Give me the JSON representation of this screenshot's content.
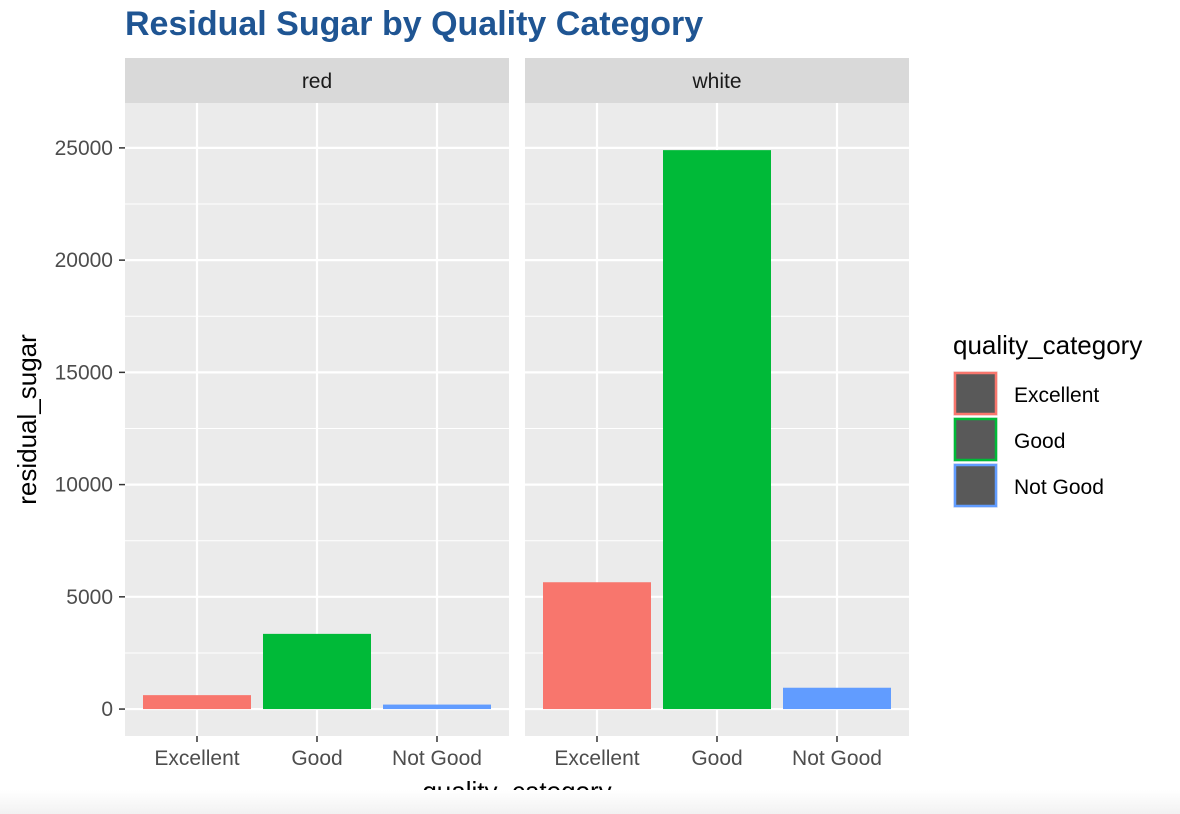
{
  "chart_data": {
    "type": "bar",
    "title": "Residual Sugar by Quality Category",
    "xlabel": "quality_category",
    "ylabel": "residual_sugar",
    "categories": [
      "Excellent",
      "Good",
      "Not Good"
    ],
    "ylim": [
      -1200,
      27000
    ],
    "yticks": [
      0,
      5000,
      10000,
      15000,
      20000,
      25000
    ],
    "grid": true,
    "legend": {
      "title": "quality_category",
      "position": "right",
      "entries": [
        "Excellent",
        "Good",
        "Not Good"
      ]
    },
    "colors": {
      "Excellent": "#f8766d",
      "Good": "#00ba38",
      "Not Good": "#619cff"
    },
    "facets": [
      {
        "label": "red",
        "values": [
          620,
          3350,
          200
        ]
      },
      {
        "label": "white",
        "values": [
          5650,
          24900,
          950
        ]
      }
    ]
  }
}
